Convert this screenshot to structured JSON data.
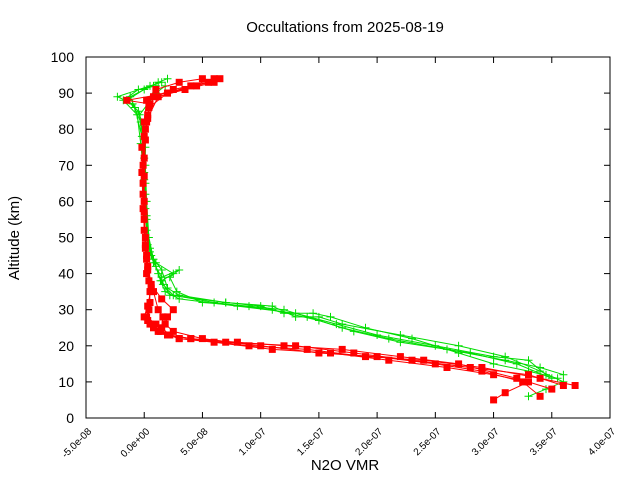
{
  "chart_data": {
    "type": "scatter",
    "title": "Occultations from 2025-08-19",
    "xlabel": "N2O VMR",
    "ylabel": "Altitude (km)",
    "xlim": [
      -5e-08,
      4e-07
    ],
    "ylim": [
      0,
      100
    ],
    "grid": false,
    "legend": "none",
    "x_ticks": [
      {
        "value": -5e-08,
        "label": "-5.0e-08"
      },
      {
        "value": 0,
        "label": "0.0e+00"
      },
      {
        "value": 5e-08,
        "label": "5.0e-08"
      },
      {
        "value": 1e-07,
        "label": "1.0e-07"
      },
      {
        "value": 1.5e-07,
        "label": "1.5e-07"
      },
      {
        "value": 2e-07,
        "label": "2.0e-07"
      },
      {
        "value": 2.5e-07,
        "label": "2.5e-07"
      },
      {
        "value": 3e-07,
        "label": "3.0e-07"
      },
      {
        "value": 3.5e-07,
        "label": "3.5e-07"
      },
      {
        "value": 4e-07,
        "label": "4.0e-07"
      }
    ],
    "y_ticks": [
      {
        "value": 0,
        "label": "0"
      },
      {
        "value": 10,
        "label": "10"
      },
      {
        "value": 20,
        "label": "20"
      },
      {
        "value": 30,
        "label": "30"
      },
      {
        "value": 40,
        "label": "40"
      },
      {
        "value": 50,
        "label": "50"
      },
      {
        "value": 60,
        "label": "60"
      },
      {
        "value": 70,
        "label": "70"
      },
      {
        "value": 80,
        "label": "80"
      },
      {
        "value": 90,
        "label": "90"
      },
      {
        "value": 100,
        "label": "100"
      }
    ],
    "series": [
      {
        "color": "#00dd00",
        "marker": "plus",
        "profiles": [
          [
            [
              3.45e-07,
              12
            ],
            [
              3.3e-07,
              16
            ],
            [
              3e-07,
              17
            ],
            [
              2.5e-07,
              20
            ],
            [
              2e-07,
              23
            ],
            [
              1.65e-07,
              26
            ],
            [
              1.3e-07,
              29
            ],
            [
              8e-08,
              31
            ],
            [
              3e-08,
              33
            ],
            [
              1.8e-08,
              35
            ],
            [
              1.4e-08,
              38
            ],
            [
              1e-08,
              42
            ],
            [
              5e-09,
              47
            ],
            [
              2e-09,
              55
            ],
            [
              1e-09,
              65
            ],
            [
              1e-09,
              75
            ],
            [
              -3e-09,
              82
            ],
            [
              -1e-08,
              87
            ],
            [
              -2.3e-08,
              89
            ],
            [
              5e-09,
              92
            ],
            [
              1.5e-08,
              93
            ]
          ],
          [
            [
              3.5e-07,
              11
            ],
            [
              3.2e-07,
              15
            ],
            [
              2.8e-07,
              18
            ],
            [
              2.2e-07,
              21
            ],
            [
              1.8e-07,
              24
            ],
            [
              1.5e-07,
              27
            ],
            [
              1.1e-07,
              30
            ],
            [
              6e-08,
              32
            ],
            [
              2.5e-08,
              34
            ],
            [
              1.6e-08,
              37
            ],
            [
              1.2e-08,
              40
            ],
            [
              8e-09,
              44
            ],
            [
              4e-09,
              50
            ],
            [
              2e-09,
              60
            ],
            [
              1e-09,
              70
            ],
            [
              0,
              80
            ],
            [
              -5e-09,
              85
            ],
            [
              -1.5e-08,
              88
            ],
            [
              0,
              91
            ],
            [
              8e-09,
              92
            ]
          ],
          [
            [
              3.6e-07,
              12
            ],
            [
              3.4e-07,
              14
            ],
            [
              3.1e-07,
              16
            ],
            [
              2.6e-07,
              19
            ],
            [
              2.1e-07,
              22
            ],
            [
              1.7e-07,
              25
            ],
            [
              1.4e-07,
              28
            ],
            [
              1.2e-07,
              30
            ],
            [
              9e-08,
              31
            ],
            [
              5e-08,
              32
            ],
            [
              2.8e-08,
              35
            ],
            [
              2.2e-08,
              39
            ],
            [
              3e-08,
              41
            ],
            [
              1.5e-08,
              39
            ],
            [
              8e-09,
              43
            ],
            [
              3e-09,
              48
            ],
            [
              1e-09,
              58
            ],
            [
              0,
              68
            ],
            [
              -2e-09,
              78
            ],
            [
              -8e-09,
              86
            ],
            [
              -1.2e-08,
              89
            ],
            [
              1.2e-08,
              93
            ],
            [
              2e-08,
              94
            ]
          ],
          [
            [
              3.55e-07,
              11
            ],
            [
              3.3e-07,
              13
            ],
            [
              3e-07,
              15
            ],
            [
              2.7e-07,
              18
            ],
            [
              2.3e-07,
              22
            ],
            [
              1.9e-07,
              25
            ],
            [
              1.6e-07,
              28
            ],
            [
              1.45e-07,
              29
            ],
            [
              1.2e-07,
              29
            ],
            [
              1e-07,
              31
            ],
            [
              7e-08,
              32
            ],
            [
              3e-08,
              34
            ],
            [
              2e-08,
              36
            ],
            [
              1.5e-08,
              41
            ],
            [
              6e-09,
              45
            ],
            [
              2e-09,
              52
            ],
            [
              1e-09,
              62
            ],
            [
              0,
              72
            ],
            [
              -4e-09,
              84
            ],
            [
              1e-08,
              90
            ],
            [
              1.8e-08,
              92
            ]
          ],
          [
            [
              3.3e-07,
              6
            ],
            [
              3.45e-07,
              8
            ],
            [
              3.6e-07,
              10
            ],
            [
              3.4e-07,
              13
            ],
            [
              3.1e-07,
              17
            ],
            [
              2.7e-07,
              20
            ],
            [
              2.2e-07,
              23
            ],
            [
              1.7e-07,
              26
            ],
            [
              1.5e-07,
              28
            ],
            [
              1.3e-07,
              28
            ],
            [
              1.1e-07,
              31
            ],
            [
              7e-08,
              32
            ],
            [
              2.2e-08,
              34
            ],
            [
              1.5e-08,
              38
            ],
            [
              2.5e-08,
              40
            ],
            [
              1e-08,
              43
            ],
            [
              5e-09,
              46
            ],
            [
              2e-09,
              56
            ],
            [
              0,
              66
            ],
            [
              -3e-09,
              76
            ],
            [
              -6e-09,
              84
            ],
            [
              -1.8e-08,
              88
            ],
            [
              -5e-09,
              91
            ],
            [
              1e-08,
              92
            ]
          ]
        ]
      },
      {
        "color": "#ff0000",
        "marker": "square",
        "profiles": [
          [
            [
              3.6e-07,
              9
            ],
            [
              3.3e-07,
              12
            ],
            [
              2.8e-07,
              14
            ],
            [
              2.3e-07,
              16
            ],
            [
              1.8e-07,
              18
            ],
            [
              1.3e-07,
              20
            ],
            [
              7e-08,
              21
            ],
            [
              3e-08,
              22
            ],
            [
              1.4e-08,
              24
            ],
            [
              1e-08,
              26
            ],
            [
              2e-09,
              28
            ],
            [
              5e-09,
              32
            ],
            [
              4e-09,
              38
            ],
            [
              2e-09,
              45
            ],
            [
              0,
              55
            ],
            [
              -1e-09,
              65
            ],
            [
              -2e-09,
              75
            ],
            [
              0,
              82
            ],
            [
              2e-09,
              88
            ],
            [
              1e-08,
              91
            ],
            [
              3e-08,
              93
            ],
            [
              5e-08,
              94
            ]
          ],
          [
            [
              3.7e-07,
              9
            ],
            [
              3.4e-07,
              11
            ],
            [
              2.9e-07,
              14
            ],
            [
              2.4e-07,
              16
            ],
            [
              1.9e-07,
              17
            ],
            [
              1.4e-07,
              19
            ],
            [
              9e-08,
              20
            ],
            [
              4e-08,
              22
            ],
            [
              2e-08,
              23
            ],
            [
              8e-09,
              25
            ],
            [
              3e-09,
              27
            ],
            [
              4e-09,
              30
            ],
            [
              5e-09,
              35
            ],
            [
              3e-09,
              42
            ],
            [
              1e-09,
              50
            ],
            [
              0,
              60
            ],
            [
              -1e-09,
              70
            ],
            [
              1e-09,
              80
            ],
            [
              4e-09,
              86
            ],
            [
              2e-08,
              90
            ],
            [
              4.5e-08,
              92
            ],
            [
              6.5e-08,
              94
            ]
          ],
          [
            [
              3.5e-07,
              8
            ],
            [
              3.2e-07,
              11
            ],
            [
              2.7e-07,
              15
            ],
            [
              2.2e-07,
              17
            ],
            [
              1.7e-07,
              19
            ],
            [
              1.2e-07,
              20
            ],
            [
              8e-08,
              21
            ],
            [
              4e-08,
              22
            ],
            [
              2.2e-08,
              23
            ],
            [
              1.5e-08,
              25
            ],
            [
              1.6e-08,
              28
            ],
            [
              1.2e-08,
              30
            ],
            [
              8e-09,
              35
            ],
            [
              2e-09,
              40
            ],
            [
              1e-09,
              48
            ],
            [
              -1e-09,
              58
            ],
            [
              -2e-09,
              68
            ],
            [
              0,
              78
            ],
            [
              3e-09,
              84
            ],
            [
              8e-09,
              89
            ],
            [
              2.5e-08,
              91
            ],
            [
              5.5e-08,
              93
            ]
          ],
          [
            [
              3.4e-07,
              6
            ],
            [
              3.25e-07,
              10
            ],
            [
              2.9e-07,
              13
            ],
            [
              2.5e-07,
              15
            ],
            [
              2e-07,
              17
            ],
            [
              1.5e-07,
              18
            ],
            [
              1e-07,
              20
            ],
            [
              5e-08,
              22
            ],
            [
              2.5e-08,
              24
            ],
            [
              1.8e-08,
              26
            ],
            [
              2e-08,
              28
            ],
            [
              2.5e-08,
              30
            ],
            [
              1.5e-08,
              33
            ],
            [
              6e-09,
              37
            ],
            [
              2e-09,
              44
            ],
            [
              0,
              52
            ],
            [
              -1e-09,
              62
            ],
            [
              0,
              72
            ],
            [
              2e-09,
              82
            ],
            [
              5e-09,
              87
            ],
            [
              -1.5e-08,
              88
            ],
            [
              2e-08,
              90
            ],
            [
              4e-08,
              92
            ],
            [
              6e-08,
              94
            ]
          ],
          [
            [
              3e-07,
              5
            ],
            [
              3.1e-07,
              7
            ],
            [
              3.3e-07,
              10
            ],
            [
              3e-07,
              12
            ],
            [
              2.6e-07,
              14
            ],
            [
              2.1e-07,
              16
            ],
            [
              1.6e-07,
              18
            ],
            [
              1.1e-07,
              19
            ],
            [
              6e-08,
              21
            ],
            [
              3e-08,
              22
            ],
            [
              1.2e-08,
              24
            ],
            [
              5e-09,
              26
            ],
            [
              0,
              28
            ],
            [
              3e-09,
              31
            ],
            [
              6e-09,
              36
            ],
            [
              3e-09,
              41
            ],
            [
              1e-09,
              47
            ],
            [
              0,
              57
            ],
            [
              0,
              67
            ],
            [
              1e-09,
              77
            ],
            [
              3e-09,
              83
            ],
            [
              1.2e-08,
              89
            ],
            [
              3.5e-08,
              91
            ],
            [
              6e-08,
              93
            ]
          ]
        ]
      }
    ]
  }
}
